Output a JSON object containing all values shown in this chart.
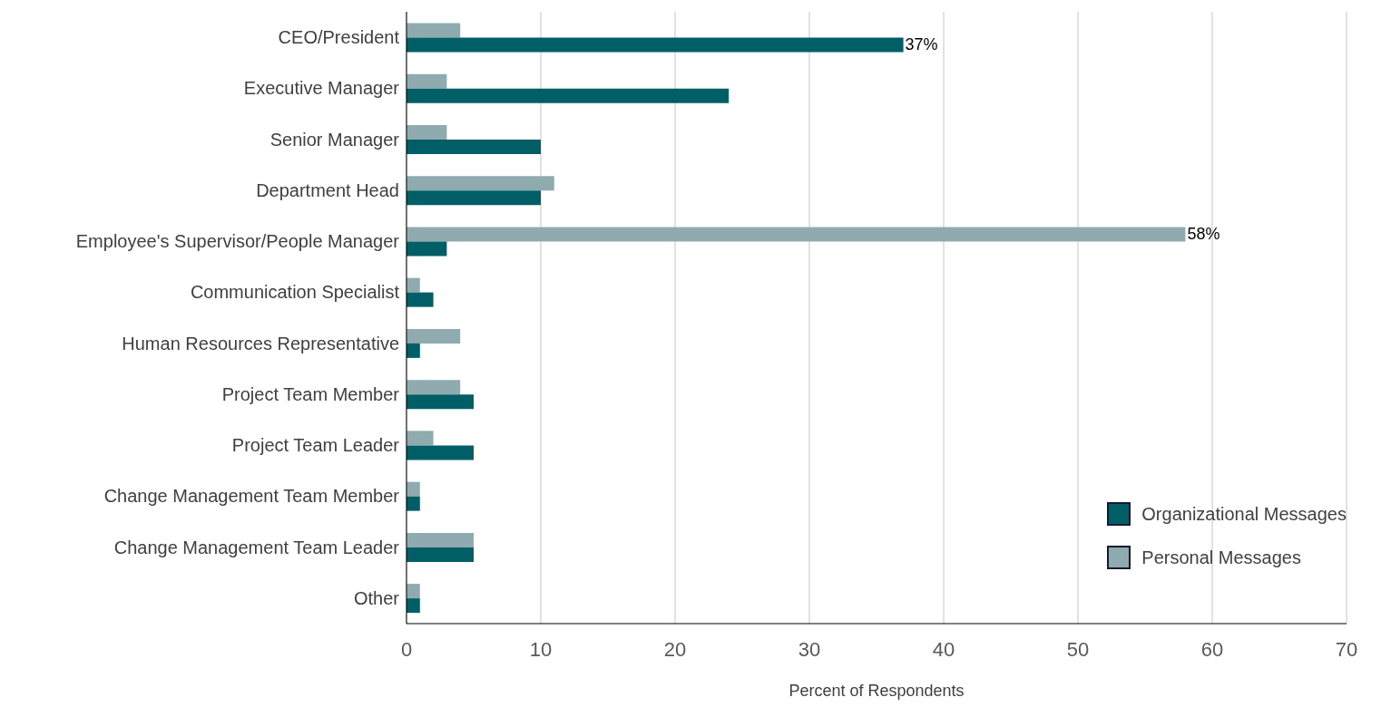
{
  "chart_data": {
    "type": "bar",
    "orientation": "horizontal",
    "xlabel": "Percent of Respondents",
    "categories": [
      "CEO/President",
      "Executive Manager",
      "Senior Manager",
      "Department Head",
      "Employee's Supervisor/People Manager",
      "Communication Specialist",
      "Human Resources Representative",
      "Project Team Member",
      "Project Team Leader",
      "Change Management Team Member",
      "Change Management Team Leader",
      "Other"
    ],
    "series": [
      {
        "name": "Organizational Messages",
        "color": "#005f66",
        "values": [
          37,
          24,
          10,
          10,
          3,
          2,
          1,
          5,
          5,
          1,
          5,
          1
        ],
        "value_labels": [
          "37%",
          null,
          null,
          null,
          null,
          null,
          null,
          null,
          null,
          null,
          null,
          null
        ]
      },
      {
        "name": "Personal Messages",
        "color": "#8fabb0",
        "values": [
          4,
          3,
          3,
          11,
          58,
          1,
          4,
          4,
          2,
          1,
          5,
          1
        ],
        "value_labels": [
          null,
          null,
          null,
          null,
          "58%",
          null,
          null,
          null,
          null,
          null,
          null,
          null
        ]
      }
    ],
    "xlim": [
      0,
      70
    ],
    "xticks": [
      0,
      10,
      20,
      30,
      40,
      50,
      60,
      70
    ],
    "grid": "x",
    "legend": "bottom right"
  }
}
